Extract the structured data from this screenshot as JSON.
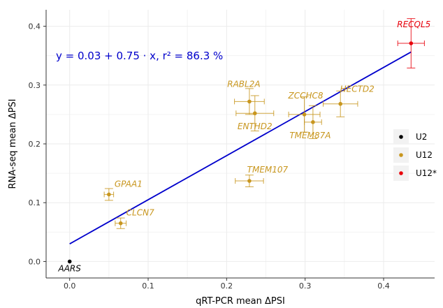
{
  "chart_data": {
    "type": "scatter",
    "xlabel": "qRT-PCR mean ΔPSI",
    "ylabel": "RNA-seq mean ΔPSI",
    "xlim": [
      -0.03,
      0.465
    ],
    "ylim": [
      -0.028,
      0.428
    ],
    "x_ticks": [
      0.0,
      0.1,
      0.2,
      0.3,
      0.4
    ],
    "x_tick_labels": [
      "0.0",
      "0.1",
      "0.2",
      "0.3",
      "0.4"
    ],
    "y_ticks": [
      0.0,
      0.1,
      0.2,
      0.3,
      0.4
    ],
    "y_tick_labels": [
      "0.0",
      "0.1",
      "0.2",
      "0.3",
      "0.4"
    ],
    "grid": true,
    "legend_position": "right",
    "regression": {
      "intercept": 0.03,
      "slope": 0.75,
      "x_range": [
        0.0,
        0.435
      ],
      "color": "#0000cc",
      "formula_text": "y = 0.03 + 0.75 · x,   r² = 86.3 %"
    },
    "groups": [
      {
        "name": "U2",
        "color": "#000000"
      },
      {
        "name": "U12",
        "color": "#c8961e"
      },
      {
        "name": "U12*",
        "color": "#e8000b"
      }
    ],
    "points": [
      {
        "label": "AARS",
        "group": "U2",
        "x": 0.0,
        "y": 0.0,
        "xerr": 0.0,
        "yerr": 0.0
      },
      {
        "label": "GPAA1",
        "group": "U12",
        "x": 0.05,
        "y": 0.114,
        "xerr": 0.006,
        "yerr": 0.01
      },
      {
        "label": "CLCN7",
        "group": "U12",
        "x": 0.065,
        "y": 0.065,
        "xerr": 0.007,
        "yerr": 0.009
      },
      {
        "label": "TMEM107",
        "group": "U12",
        "x": 0.229,
        "y": 0.137,
        "xerr": 0.018,
        "yerr": 0.01
      },
      {
        "label": "RABL2A",
        "group": "U12",
        "x": 0.229,
        "y": 0.272,
        "xerr": 0.019,
        "yerr": 0.022
      },
      {
        "label": "ENTHD2",
        "group": "U12",
        "x": 0.236,
        "y": 0.252,
        "xerr": 0.024,
        "yerr": 0.03
      },
      {
        "label": "ZCCHC8",
        "group": "U12",
        "x": 0.299,
        "y": 0.25,
        "xerr": 0.02,
        "yerr": 0.03
      },
      {
        "label": "TMEM87A",
        "group": "U12",
        "x": 0.31,
        "y": 0.237,
        "xerr": 0.011,
        "yerr": 0.028
      },
      {
        "label": "HECTD2",
        "group": "U12",
        "x": 0.345,
        "y": 0.268,
        "xerr": 0.022,
        "yerr": 0.022
      },
      {
        "label": "RECQL5",
        "group": "U12*",
        "x": 0.435,
        "y": 0.371,
        "xerr": 0.017,
        "yerr": 0.042
      }
    ]
  }
}
